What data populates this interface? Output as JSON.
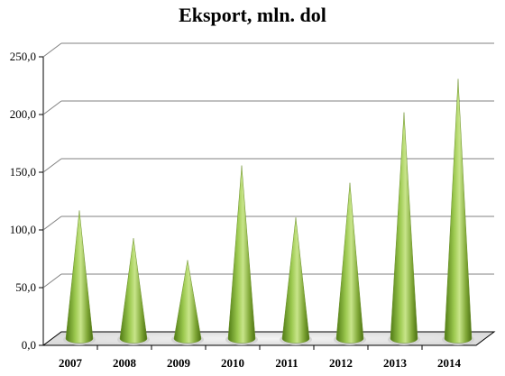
{
  "chart_data": {
    "type": "bar",
    "title": "Eksport, mln. dol",
    "xlabel": "",
    "ylabel": "",
    "categories": [
      "2007",
      "2008",
      "2009",
      "2010",
      "2011",
      "2012",
      "2013",
      "2014"
    ],
    "values": [
      111,
      87,
      68,
      150,
      105,
      135,
      196,
      225
    ],
    "ylim": [
      0,
      250
    ],
    "yticks": [
      "0,0",
      "50,0",
      "100,0",
      "150,0",
      "200,0",
      "250,0"
    ],
    "grid": true,
    "legend": "none",
    "bar_shape": "cone",
    "bar_color": "#8db83f"
  }
}
